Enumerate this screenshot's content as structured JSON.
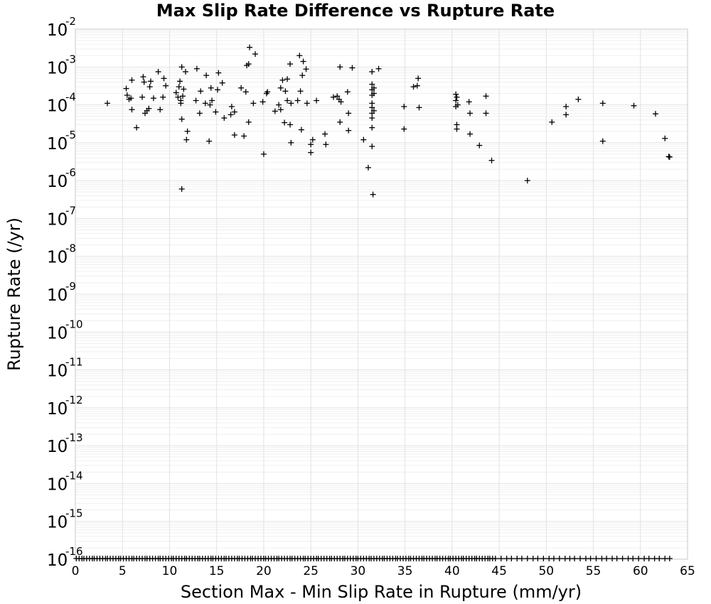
{
  "chart_data": {
    "type": "scatter",
    "title": "Max Slip Rate Difference vs Rupture Rate",
    "xlabel": "Section Max - Min Slip Rate in Rupture (mm/yr)",
    "ylabel": "Rupture Rate (/yr)",
    "xlim": [
      0,
      65
    ],
    "ylim": [
      1e-16,
      0.01
    ],
    "yscale": "log",
    "grid": true,
    "legend": "none",
    "marker": "plus",
    "color": "#000000",
    "x_ticks": [
      "0",
      "5",
      "10",
      "15",
      "20",
      "25",
      "30",
      "35",
      "40",
      "45",
      "50",
      "55",
      "60",
      "65"
    ],
    "y_ticks": [
      {
        "base": "10",
        "exp": "-2"
      },
      {
        "base": "10",
        "exp": "-3"
      },
      {
        "base": "10",
        "exp": "-4"
      },
      {
        "base": "10",
        "exp": "-5"
      },
      {
        "base": "10",
        "exp": "-6"
      },
      {
        "base": "10",
        "exp": "-7"
      },
      {
        "base": "10",
        "exp": "-8"
      },
      {
        "base": "10",
        "exp": "-9"
      },
      {
        "base": "10",
        "exp": "-10"
      },
      {
        "base": "10",
        "exp": "-11"
      },
      {
        "base": "10",
        "exp": "-12"
      },
      {
        "base": "10",
        "exp": "-13"
      },
      {
        "base": "10",
        "exp": "-14"
      },
      {
        "base": "10",
        "exp": "-15"
      },
      {
        "base": "10",
        "exp": "-16"
      }
    ],
    "points": [
      [
        3.4,
        0.00011
      ],
      [
        5.4,
        0.00027
      ],
      [
        5.5,
        0.00018
      ],
      [
        5.7,
        0.00014
      ],
      [
        5.9,
        0.00015
      ],
      [
        6.0,
        7.5e-05
      ],
      [
        6.0,
        0.00045
      ],
      [
        6.5,
        2.5e-05
      ],
      [
        7.1,
        0.00016
      ],
      [
        7.2,
        0.00055
      ],
      [
        7.3,
        0.0004
      ],
      [
        7.4,
        6e-05
      ],
      [
        7.6,
        7e-05
      ],
      [
        7.8,
        8e-05
      ],
      [
        7.9,
        0.0003
      ],
      [
        8.0,
        0.00042
      ],
      [
        8.3,
        0.00015
      ],
      [
        8.8,
        0.00075
      ],
      [
        9.0,
        7.5e-05
      ],
      [
        9.3,
        0.00016
      ],
      [
        9.4,
        0.0005
      ],
      [
        9.6,
        0.00032
      ],
      [
        10.7,
        0.00021
      ],
      [
        10.9,
        0.00016
      ],
      [
        11.0,
        0.0003
      ],
      [
        11.1,
        0.00042
      ],
      [
        11.2,
        0.00013
      ],
      [
        11.2,
        0.00011
      ],
      [
        11.3,
        4.2e-05
      ],
      [
        11.3,
        0.001
      ],
      [
        11.4,
        0.00017
      ],
      [
        11.5,
        0.00026
      ],
      [
        11.7,
        0.00075
      ],
      [
        11.8,
        1.2e-05
      ],
      [
        11.9,
        2e-05
      ],
      [
        11.3,
        6e-07
      ],
      [
        12.8,
        0.00013
      ],
      [
        12.9,
        0.0009
      ],
      [
        13.2,
        6e-05
      ],
      [
        13.3,
        0.00023
      ],
      [
        13.8,
        0.00011
      ],
      [
        13.9,
        0.0006
      ],
      [
        14.2,
        1.1e-05
      ],
      [
        14.3,
        0.0001
      ],
      [
        14.4,
        0.00028
      ],
      [
        14.5,
        0.00013
      ],
      [
        14.9,
        6.5e-05
      ],
      [
        15.1,
        0.00025
      ],
      [
        15.2,
        0.0007
      ],
      [
        15.6,
        0.00038
      ],
      [
        15.8,
        4.5e-05
      ],
      [
        16.5,
        5.5e-05
      ],
      [
        16.6,
        9e-05
      ],
      [
        16.9,
        6.5e-05
      ],
      [
        16.9,
        1.6e-05
      ],
      [
        17.6,
        0.00028
      ],
      [
        17.9,
        1.5e-05
      ],
      [
        18.1,
        0.00022
      ],
      [
        18.2,
        0.0011
      ],
      [
        18.4,
        0.0012
      ],
      [
        18.4,
        3.5e-05
      ],
      [
        18.5,
        0.0033
      ],
      [
        18.9,
        0.00011
      ],
      [
        19.1,
        0.0022
      ],
      [
        19.9,
        0.00012
      ],
      [
        20.0,
        5e-06
      ],
      [
        20.3,
        0.0002
      ],
      [
        20.4,
        0.00022
      ],
      [
        21.2,
        6.8e-05
      ],
      [
        21.6,
        0.0001
      ],
      [
        21.8,
        7.5e-05
      ],
      [
        21.8,
        0.00028
      ],
      [
        22.0,
        0.00045
      ],
      [
        22.2,
        3.4e-05
      ],
      [
        22.3,
        0.00023
      ],
      [
        22.5,
        0.00013
      ],
      [
        22.5,
        0.00048
      ],
      [
        22.8,
        0.0012
      ],
      [
        22.8,
        3e-05
      ],
      [
        22.9,
        1e-05
      ],
      [
        22.9,
        0.00011
      ],
      [
        23.6,
        0.00013
      ],
      [
        23.8,
        0.002
      ],
      [
        23.9,
        0.00023
      ],
      [
        24.0,
        2.2e-05
      ],
      [
        24.1,
        0.0006
      ],
      [
        24.2,
        0.0014
      ],
      [
        24.5,
        0.00088
      ],
      [
        24.6,
        0.00011
      ],
      [
        25.0,
        9e-06
      ],
      [
        25.0,
        5.5e-06
      ],
      [
        25.2,
        1.2e-05
      ],
      [
        25.6,
        0.00013
      ],
      [
        26.5,
        1.7e-05
      ],
      [
        26.6,
        9e-06
      ],
      [
        27.4,
        0.00016
      ],
      [
        27.8,
        0.00017
      ],
      [
        28.0,
        0.00014
      ],
      [
        28.1,
        0.001
      ],
      [
        28.1,
        3.5e-05
      ],
      [
        28.2,
        0.00012
      ],
      [
        28.9,
        0.00022
      ],
      [
        29.0,
        6e-05
      ],
      [
        29.0,
        2.1e-05
      ],
      [
        29.4,
        0.00095
      ],
      [
        30.6,
        1.2e-05
      ],
      [
        31.1,
        2.2e-06
      ],
      [
        31.5,
        0.00011
      ],
      [
        31.5,
        0.00075
      ],
      [
        31.5,
        0.00035
      ],
      [
        31.5,
        0.00025
      ],
      [
        31.5,
        0.00018
      ],
      [
        31.5,
        8.5e-05
      ],
      [
        31.5,
        6e-05
      ],
      [
        31.5,
        4.5e-05
      ],
      [
        31.5,
        2.5e-05
      ],
      [
        31.5,
        8e-06
      ],
      [
        31.6,
        4.3e-07
      ],
      [
        31.7,
        0.0002
      ],
      [
        31.7,
        7e-05
      ],
      [
        31.7,
        0.00028
      ],
      [
        32.2,
        0.0009
      ],
      [
        34.9,
        9e-05
      ],
      [
        34.9,
        2.3e-05
      ],
      [
        35.9,
        0.0003
      ],
      [
        36.3,
        0.00032
      ],
      [
        36.4,
        0.0005
      ],
      [
        36.5,
        8.5e-05
      ],
      [
        40.4,
        0.00019
      ],
      [
        40.4,
        0.00013
      ],
      [
        40.4,
        9e-05
      ],
      [
        40.5,
        3e-05
      ],
      [
        40.5,
        2.3e-05
      ],
      [
        40.5,
        0.00016
      ],
      [
        40.6,
        0.0001
      ],
      [
        41.8,
        0.00012
      ],
      [
        41.9,
        6e-05
      ],
      [
        41.9,
        1.7e-05
      ],
      [
        42.9,
        8.5e-06
      ],
      [
        43.6,
        0.00017
      ],
      [
        43.6,
        6e-05
      ],
      [
        44.2,
        3.4e-06
      ],
      [
        48.0,
        1e-06
      ],
      [
        50.6,
        3.5e-05
      ],
      [
        52.1,
        9e-05
      ],
      [
        52.1,
        5.5e-05
      ],
      [
        53.4,
        0.00014
      ],
      [
        56.0,
        0.00011
      ],
      [
        56.0,
        1.1e-05
      ],
      [
        59.3,
        9.5e-05
      ],
      [
        61.6,
        5.8e-05
      ],
      [
        62.6,
        1.3e-05
      ],
      [
        63.0,
        4.3e-06
      ],
      [
        63.1,
        4.2e-06
      ]
    ],
    "floor_value": 1e-16,
    "floor_x": [
      0.1,
      0.4,
      0.7,
      0.9,
      1.2,
      1.5,
      1.8,
      2.0,
      2.3,
      2.6,
      2.9,
      3.2,
      3.4,
      3.7,
      4.0,
      4.3,
      4.6,
      4.8,
      5.1,
      5.4,
      5.7,
      6.0,
      6.2,
      6.5,
      6.8,
      7.1,
      7.4,
      7.6,
      7.9,
      8.2,
      8.5,
      8.8,
      9.0,
      9.3,
      9.6,
      9.9,
      10.2,
      10.4,
      10.7,
      11.0,
      11.3,
      11.6,
      11.8,
      12.1,
      12.4,
      12.7,
      13.0,
      13.2,
      13.5,
      13.8,
      14.1,
      14.4,
      14.6,
      14.9,
      15.2,
      15.5,
      15.8,
      16.0,
      16.3,
      16.6,
      16.9,
      17.2,
      17.4,
      17.7,
      18.0,
      18.3,
      18.6,
      18.8,
      19.1,
      19.4,
      19.7,
      20.0,
      20.2,
      20.5,
      20.8,
      21.1,
      21.4,
      21.6,
      21.9,
      22.2,
      22.5,
      22.8,
      23.0,
      23.3,
      23.6,
      23.9,
      24.2,
      24.4,
      24.7,
      25.0,
      25.3,
      25.6,
      25.8,
      26.1,
      26.4,
      26.7,
      27.0,
      27.2,
      27.5,
      27.8,
      28.1,
      28.4,
      28.6,
      28.9,
      29.2,
      29.5,
      29.8,
      30.0,
      30.3,
      30.6,
      30.9,
      31.2,
      31.4,
      31.7,
      32.0,
      32.3,
      32.6,
      32.8,
      33.1,
      33.4,
      33.7,
      34.0,
      34.2,
      34.5,
      34.8,
      35.1,
      35.4,
      35.6,
      35.9,
      36.2,
      36.5,
      36.8,
      37.0,
      37.3,
      37.6,
      37.9,
      38.2,
      38.4,
      38.7,
      39.0,
      39.3,
      39.6,
      39.8,
      40.1,
      40.4,
      40.7,
      41.0,
      41.2,
      41.5,
      41.8,
      42.1,
      42.4,
      42.6,
      42.9,
      43.2,
      43.5,
      43.8,
      44.0,
      44.3,
      44.6,
      45.2,
      45.8,
      46.3,
      46.9,
      47.4,
      48.0,
      48.6,
      49.1,
      49.7,
      50.3,
      50.8,
      51.4,
      52.0,
      52.5,
      53.0,
      53.6,
      54.2,
      54.7,
      55.3,
      55.9,
      56.4,
      57.0,
      57.5,
      58.1,
      58.7,
      59.2,
      59.8,
      60.4,
      60.9,
      61.5,
      62.0,
      62.6,
      63.1
    ]
  }
}
